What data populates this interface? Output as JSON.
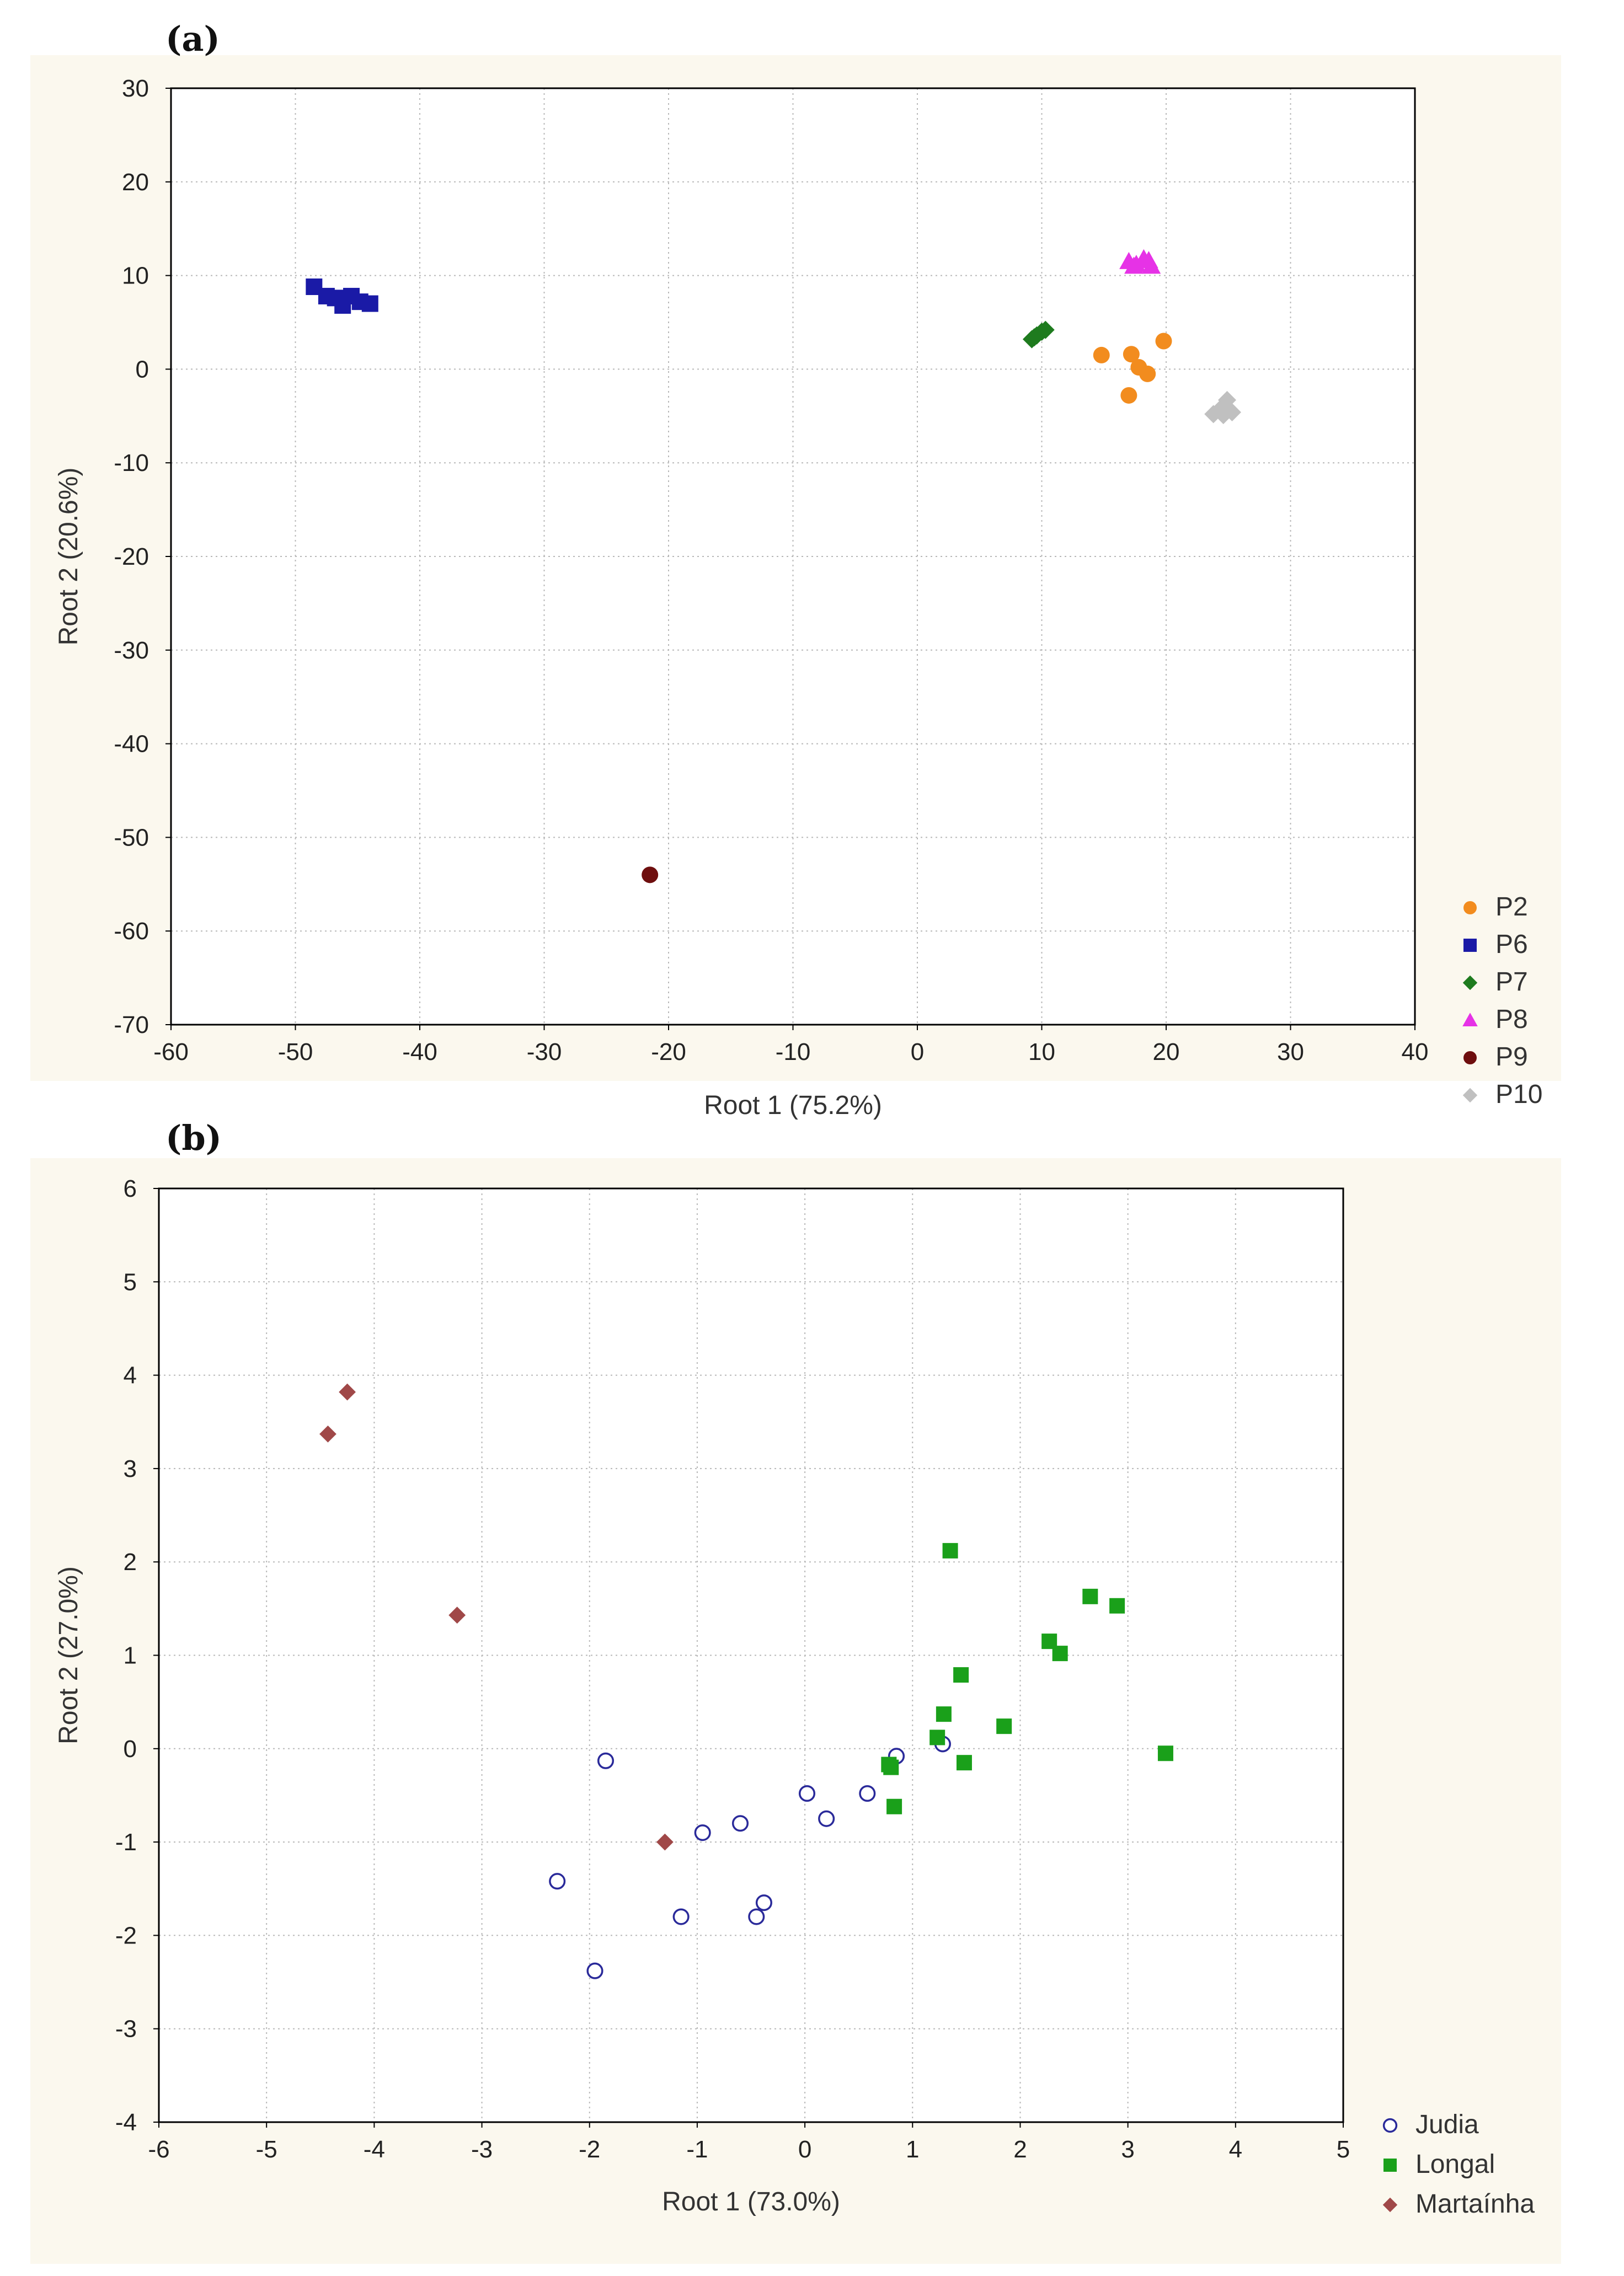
{
  "chart_data": [
    {
      "panel_label": "(a)",
      "type": "scatter",
      "xlabel": "Root 1 (75.2%)",
      "ylabel": "Root 2 (20.6%)",
      "xlim": [
        -60,
        40
      ],
      "ylim": [
        -70,
        30
      ],
      "xticks": [
        -60,
        -50,
        -40,
        -30,
        -20,
        -10,
        0,
        10,
        20,
        30,
        40
      ],
      "yticks": [
        -70,
        -60,
        -50,
        -40,
        -30,
        -20,
        -10,
        0,
        10,
        20,
        30
      ],
      "grid": true,
      "legend_position": "bottom-right",
      "series": [
        {
          "name": "P2",
          "marker": "circle-filled",
          "color": "#f28c1e",
          "points": [
            [
              14.8,
              1.5
            ],
            [
              17.2,
              1.6
            ],
            [
              17.8,
              0.2
            ],
            [
              18.5,
              -0.5
            ],
            [
              19.8,
              3.0
            ],
            [
              17.0,
              -2.8
            ]
          ]
        },
        {
          "name": "P6",
          "marker": "square-filled",
          "color": "#1a1aa6",
          "points": [
            [
              -48.5,
              8.8
            ],
            [
              -47.5,
              7.8
            ],
            [
              -46.8,
              7.6
            ],
            [
              -46.2,
              6.8
            ],
            [
              -45.5,
              7.8
            ],
            [
              -44.8,
              7.2
            ],
            [
              -44.0,
              7.0
            ]
          ]
        },
        {
          "name": "P7",
          "marker": "diamond-filled",
          "color": "#1e7b1e",
          "points": [
            [
              9.2,
              3.2
            ],
            [
              9.6,
              3.6
            ],
            [
              10.0,
              4.0
            ],
            [
              10.3,
              4.2
            ],
            [
              9.4,
              3.4
            ]
          ]
        },
        {
          "name": "P8",
          "marker": "triangle-filled",
          "color": "#e632e6",
          "points": [
            [
              17.0,
              11.5
            ],
            [
              17.6,
              11.2
            ],
            [
              18.2,
              11.8
            ],
            [
              18.8,
              11.0
            ],
            [
              17.4,
              11.0
            ],
            [
              18.6,
              11.6
            ]
          ]
        },
        {
          "name": "P9",
          "marker": "circle-filled",
          "color": "#6e0e0e",
          "points": [
            [
              -21.5,
              -54.0
            ]
          ]
        },
        {
          "name": "P10",
          "marker": "diamond-filled",
          "color": "#c0c0c0",
          "points": [
            [
              23.8,
              -4.8
            ],
            [
              24.4,
              -4.2
            ],
            [
              24.9,
              -3.3
            ],
            [
              25.3,
              -4.6
            ],
            [
              24.6,
              -4.9
            ]
          ]
        }
      ]
    },
    {
      "panel_label": "(b)",
      "type": "scatter",
      "xlabel": "Root 1 (73.0%)",
      "ylabel": "Root 2 (27.0%)",
      "xlim": [
        -6,
        5
      ],
      "ylim": [
        -4,
        6
      ],
      "xticks": [
        -6,
        -5,
        -4,
        -3,
        -2,
        -1,
        0,
        1,
        2,
        3,
        4,
        5
      ],
      "yticks": [
        -4,
        -3,
        -2,
        -1,
        0,
        1,
        2,
        3,
        4,
        5,
        6
      ],
      "grid": true,
      "legend_position": "bottom-right",
      "series": [
        {
          "name": "Judia",
          "marker": "circle-open",
          "color": "#2a2a9a",
          "points": [
            [
              -1.85,
              -0.13
            ],
            [
              -2.3,
              -1.42
            ],
            [
              -1.95,
              -2.38
            ],
            [
              -1.15,
              -1.8
            ],
            [
              -0.95,
              -0.9
            ],
            [
              -0.6,
              -0.8
            ],
            [
              -0.45,
              -1.8
            ],
            [
              -0.38,
              -1.65
            ],
            [
              0.02,
              -0.48
            ],
            [
              0.2,
              -0.75
            ],
            [
              0.58,
              -0.48
            ],
            [
              0.85,
              -0.08
            ],
            [
              1.28,
              0.05
            ]
          ]
        },
        {
          "name": "Longal",
          "marker": "square-filled",
          "color": "#1aa01a",
          "points": [
            [
              1.35,
              2.12
            ],
            [
              2.65,
              1.63
            ],
            [
              2.9,
              1.53
            ],
            [
              2.27,
              1.15
            ],
            [
              2.37,
              1.02
            ],
            [
              1.45,
              0.79
            ],
            [
              1.29,
              0.37
            ],
            [
              1.85,
              0.24
            ],
            [
              1.23,
              0.12
            ],
            [
              0.78,
              -0.17
            ],
            [
              0.8,
              -0.2
            ],
            [
              1.48,
              -0.15
            ],
            [
              3.35,
              -0.05
            ],
            [
              0.83,
              -0.62
            ]
          ]
        },
        {
          "name": "Martaínha",
          "marker": "diamond-filled",
          "color": "#a04848",
          "points": [
            [
              -4.25,
              3.82
            ],
            [
              -4.43,
              3.37
            ],
            [
              -3.23,
              1.43
            ],
            [
              -1.3,
              -1.0
            ]
          ]
        }
      ]
    }
  ]
}
